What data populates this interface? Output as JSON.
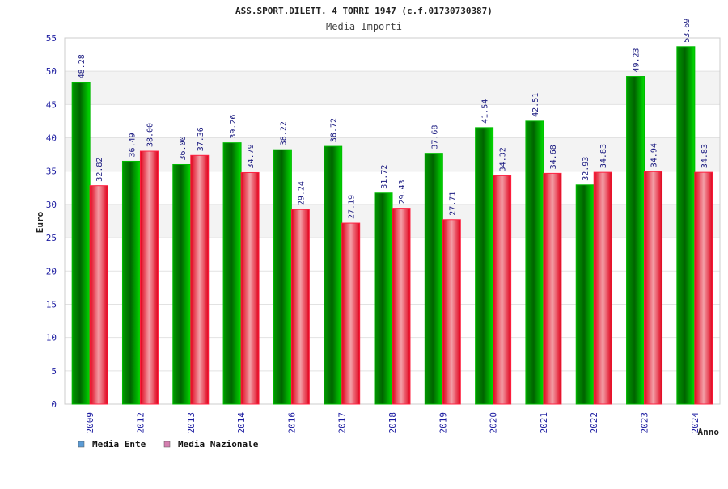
{
  "chart_data": {
    "type": "bar",
    "title": "ASS.SPORT.DILETT. 4 TORRI 1947 (c.f.01730730387)",
    "subtitle": "Media Importi",
    "xlabel": "Anno",
    "ylabel": "Euro",
    "ylim": [
      0,
      55
    ],
    "yticks": [
      0,
      5,
      10,
      15,
      20,
      25,
      30,
      35,
      40,
      45,
      50,
      55
    ],
    "ytick_labels": [
      "0",
      "5",
      "10",
      "15",
      "20",
      "25",
      "30",
      "35",
      "40",
      "45",
      "50",
      "55"
    ],
    "categories": [
      "2009",
      "2012",
      "2013",
      "2014",
      "2016",
      "2017",
      "2018",
      "2019",
      "2020",
      "2021",
      "2022",
      "2023",
      "2024"
    ],
    "series": [
      {
        "name": "Media Ente",
        "color": "#00c000",
        "values": [
          48.28,
          36.49,
          36.0,
          39.26,
          38.22,
          38.72,
          31.72,
          37.68,
          41.54,
          42.51,
          32.93,
          49.23,
          53.69
        ],
        "labels": [
          "48.28",
          "36.49",
          "36.00",
          "39.26",
          "38.22",
          "38.72",
          "31.72",
          "37.68",
          "41.54",
          "42.51",
          "32.93",
          "49.23",
          "53.69"
        ]
      },
      {
        "name": "Media Nazionale",
        "color": "#e8102a",
        "values": [
          32.82,
          38.0,
          37.36,
          34.79,
          29.24,
          27.19,
          29.43,
          27.71,
          34.32,
          34.68,
          34.83,
          34.94,
          34.83
        ],
        "labels": [
          "32.82",
          "38.00",
          "37.36",
          "34.79",
          "29.24",
          "27.19",
          "29.43",
          "27.71",
          "34.32",
          "34.68",
          "34.83",
          "34.94",
          "34.83"
        ]
      }
    ],
    "legend": {
      "placement": "bottom-left",
      "items": [
        {
          "label": "Media Ente",
          "color": "#5b9bd5"
        },
        {
          "label": "Media Nazionale",
          "color": "#d57fb0"
        }
      ]
    },
    "grid": true,
    "band_colors": [
      "#ffffff",
      "#f3f3f3"
    ]
  }
}
